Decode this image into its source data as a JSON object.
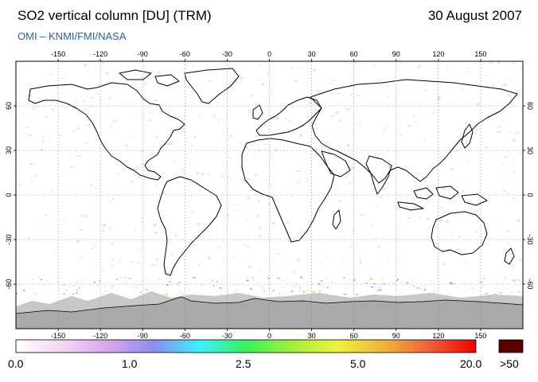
{
  "header": {
    "title": "SO2 vertical column [DU] (TRM)",
    "date": "30 August 2007",
    "source": "OMI  –  KNMI/FMI/NASA"
  },
  "map": {
    "lon_ticks": [
      "-150",
      "-120",
      "-90",
      "-60",
      "-30",
      "0",
      "30",
      "60",
      "90",
      "120",
      "150"
    ],
    "lat_ticks": [
      "60",
      "30",
      "0",
      "-30",
      "-60"
    ],
    "lon_range": [
      -180,
      180
    ],
    "lat_range": [
      -90,
      90
    ],
    "grid": true,
    "land_outline_color": "#000000",
    "no_data_color": "#bdbdbd"
  },
  "colorbar": {
    "labels": [
      "0.0",
      "1.0",
      "2.5",
      "5.0",
      "20.0"
    ],
    "overflow_label": ">50",
    "colors": [
      "#ffffff",
      "#f3d6f3",
      "#d9a6ee",
      "#8c8cf0",
      "#3cf0ff",
      "#3cf05a",
      "#a0f03c",
      "#f0f03c",
      "#f0b43c",
      "#f0603c",
      "#f00000"
    ],
    "overflow_color": "#5a0000"
  }
}
